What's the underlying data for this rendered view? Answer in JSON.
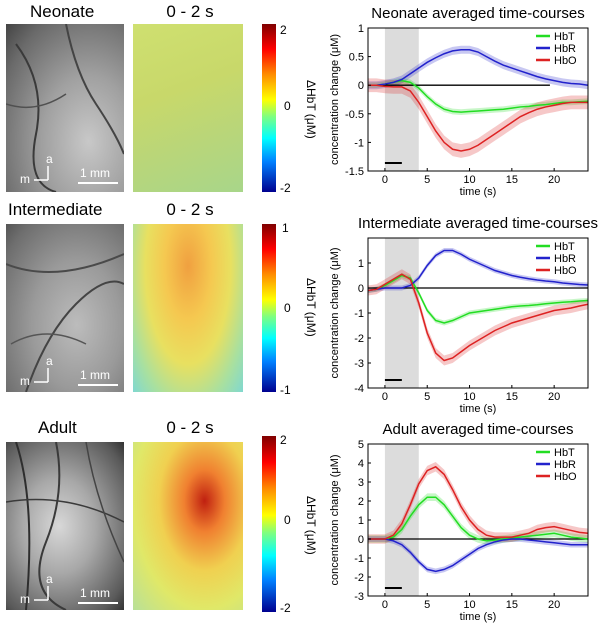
{
  "rows": [
    {
      "name": "neonate",
      "label": "Neonate",
      "map_title": "0 - 2 s",
      "scale_bar": "1 mm",
      "axis_a": "a",
      "axis_m": "m",
      "colorbar": {
        "max": "2",
        "mid": "0",
        "min": "-2",
        "unit": "ΔHbT (μM)"
      }
    },
    {
      "name": "intermediate",
      "label": "Intermediate",
      "map_title": "0 - 2 s",
      "scale_bar": "1 mm",
      "axis_a": "a",
      "axis_m": "m",
      "colorbar": {
        "max": "1",
        "mid": "0",
        "min": "-1",
        "unit": "ΔHbT (μM)"
      }
    },
    {
      "name": "adult",
      "label": "Adult",
      "map_title": "0 - 2 s",
      "scale_bar": "1 mm",
      "axis_a": "a",
      "axis_m": "m",
      "colorbar": {
        "max": "2",
        "mid": "0",
        "min": "-2",
        "unit": "ΔHbT (μM)"
      }
    }
  ],
  "colors": {
    "HbT": "#22dd22",
    "HbR": "#2222cc",
    "HbO": "#dd2222",
    "stim": "#dcdcdc"
  },
  "chart_data": [
    {
      "type": "line",
      "title": "Neonate averaged time-courses",
      "xlabel": "time (s)",
      "ylabel": "concentration change (μM)",
      "xlim": [
        -2,
        24
      ],
      "ylim": [
        -1.5,
        1
      ],
      "xticks": [
        "0",
        "5",
        "10",
        "15",
        "20"
      ],
      "xtick_values": [
        0,
        5,
        10,
        15,
        20
      ],
      "yticks": [
        "-1.5",
        "-1",
        "-0.5",
        "0",
        "0.5",
        "1"
      ],
      "ytick_values": [
        -1.5,
        -1,
        -0.5,
        0,
        0.5,
        1
      ],
      "stim_window": [
        0,
        4
      ],
      "stim_bar": [
        0,
        2
      ],
      "baseline_end": 19.5,
      "legend": [
        "HbT",
        "HbR",
        "HbO"
      ],
      "x": [
        -2,
        -1,
        0,
        1,
        2,
        3,
        4,
        5,
        6,
        7,
        8,
        9,
        10,
        11,
        12,
        13,
        14,
        15,
        16,
        17,
        18,
        19,
        20,
        21,
        22,
        23,
        24
      ],
      "series": [
        {
          "name": "HbT",
          "values": [
            0,
            0,
            0.02,
            0.05,
            0.08,
            0.05,
            -0.05,
            -0.2,
            -0.33,
            -0.42,
            -0.46,
            -0.47,
            -0.46,
            -0.45,
            -0.44,
            -0.43,
            -0.42,
            -0.4,
            -0.38,
            -0.37,
            -0.35,
            -0.34,
            -0.32,
            -0.3,
            -0.3,
            -0.29,
            -0.28
          ],
          "band": 0.05
        },
        {
          "name": "HbR",
          "values": [
            0,
            0,
            0.02,
            0.05,
            0.1,
            0.2,
            0.3,
            0.4,
            0.48,
            0.55,
            0.6,
            0.62,
            0.62,
            0.58,
            0.5,
            0.42,
            0.35,
            0.3,
            0.25,
            0.2,
            0.15,
            0.11,
            0.08,
            0.05,
            0.03,
            0.02,
            0
          ],
          "band": 0.07
        },
        {
          "name": "HbO",
          "values": [
            0,
            0,
            -0.02,
            -0.03,
            -0.03,
            -0.1,
            -0.3,
            -0.55,
            -0.8,
            -1.0,
            -1.12,
            -1.15,
            -1.12,
            -1.05,
            -0.95,
            -0.85,
            -0.75,
            -0.65,
            -0.55,
            -0.48,
            -0.42,
            -0.38,
            -0.35,
            -0.32,
            -0.3,
            -0.3,
            -0.3
          ],
          "band": 0.12
        }
      ]
    },
    {
      "type": "line",
      "title": "Intermediate averaged time-courses",
      "xlabel": "time (s)",
      "ylabel": "concentration change (μM)",
      "xlim": [
        -2,
        24
      ],
      "ylim": [
        -4,
        2
      ],
      "xticks": [
        "0",
        "5",
        "10",
        "15",
        "20"
      ],
      "xtick_values": [
        0,
        5,
        10,
        15,
        20
      ],
      "yticks": [
        "-4",
        "-3",
        "-2",
        "-1",
        "0",
        "1"
      ],
      "ytick_values": [
        -4,
        -3,
        -2,
        -1,
        0,
        1
      ],
      "stim_window": [
        0,
        4
      ],
      "stim_bar": [
        0,
        2
      ],
      "baseline_end": 24,
      "legend": [
        "HbT",
        "HbR",
        "HbO"
      ],
      "x": [
        -2,
        -1,
        0,
        1,
        2,
        3,
        4,
        5,
        6,
        7,
        8,
        9,
        10,
        11,
        12,
        13,
        14,
        15,
        16,
        17,
        18,
        19,
        20,
        21,
        22,
        23,
        24
      ],
      "series": [
        {
          "name": "HbT",
          "values": [
            -0.1,
            -0.05,
            0.1,
            0.3,
            0.5,
            0.4,
            -0.2,
            -0.9,
            -1.3,
            -1.4,
            -1.3,
            -1.15,
            -1.0,
            -0.95,
            -0.9,
            -0.85,
            -0.8,
            -0.75,
            -0.72,
            -0.7,
            -0.67,
            -0.63,
            -0.6,
            -0.57,
            -0.55,
            -0.52,
            -0.5
          ],
          "band": 0.1
        },
        {
          "name": "HbR",
          "values": [
            -0.1,
            -0.05,
            0,
            0,
            0,
            0.1,
            0.4,
            0.9,
            1.3,
            1.5,
            1.5,
            1.35,
            1.15,
            1.0,
            0.85,
            0.7,
            0.6,
            0.5,
            0.43,
            0.37,
            0.32,
            0.28,
            0.25,
            0.2,
            0.17,
            0.14,
            0.12
          ],
          "band": 0.1
        },
        {
          "name": "HbO",
          "values": [
            -0.1,
            -0.05,
            0.15,
            0.35,
            0.55,
            0.35,
            -0.6,
            -1.8,
            -2.6,
            -2.9,
            -2.8,
            -2.55,
            -2.3,
            -2.1,
            -1.9,
            -1.7,
            -1.55,
            -1.4,
            -1.3,
            -1.2,
            -1.1,
            -1.0,
            -0.9,
            -0.85,
            -0.8,
            -0.72,
            -0.65
          ],
          "band": 0.2
        }
      ]
    },
    {
      "type": "line",
      "title": "Adult averaged time-courses",
      "xlabel": "time (s)",
      "ylabel": "concentration change (μM)",
      "xlim": [
        -2,
        24
      ],
      "ylim": [
        -3,
        5
      ],
      "xticks": [
        "0",
        "5",
        "10",
        "15",
        "20"
      ],
      "xtick_values": [
        0,
        5,
        10,
        15,
        20
      ],
      "yticks": [
        "-3",
        "-2",
        "-1",
        "0",
        "1",
        "2",
        "3",
        "4",
        "5"
      ],
      "ytick_values": [
        -3,
        -2,
        -1,
        0,
        1,
        2,
        3,
        4,
        5
      ],
      "stim_window": [
        0,
        4
      ],
      "stim_bar": [
        0,
        2
      ],
      "baseline_end": 24,
      "legend": [
        "HbT",
        "HbR",
        "HbO"
      ],
      "x": [
        -2,
        -1,
        0,
        1,
        2,
        3,
        4,
        5,
        6,
        7,
        8,
        9,
        10,
        11,
        12,
        13,
        14,
        15,
        16,
        17,
        18,
        19,
        20,
        21,
        22,
        23,
        24
      ],
      "series": [
        {
          "name": "HbT",
          "values": [
            0,
            0,
            0,
            0.1,
            0.5,
            1.2,
            1.8,
            2.2,
            2.2,
            1.8,
            1.2,
            0.6,
            0.2,
            0,
            -0.1,
            -0.05,
            0,
            0.05,
            0.1,
            0.15,
            0.2,
            0.25,
            0.3,
            0.2,
            0.1,
            0.05,
            0
          ],
          "band": 0.2
        },
        {
          "name": "HbR",
          "values": [
            0,
            0,
            0,
            -0.1,
            -0.3,
            -0.7,
            -1.2,
            -1.6,
            -1.7,
            -1.6,
            -1.4,
            -1.1,
            -0.8,
            -0.5,
            -0.3,
            -0.15,
            -0.05,
            0,
            0,
            -0.05,
            -0.1,
            -0.15,
            -0.2,
            -0.25,
            -0.3,
            -0.3,
            -0.3
          ],
          "band": 0.15
        },
        {
          "name": "HbO",
          "values": [
            0,
            0,
            0,
            0.2,
            0.8,
            1.8,
            2.9,
            3.6,
            3.8,
            3.4,
            2.6,
            1.7,
            1.0,
            0.5,
            0.2,
            0.1,
            0.1,
            0.1,
            0.2,
            0.3,
            0.5,
            0.6,
            0.65,
            0.55,
            0.45,
            0.35,
            0.3
          ],
          "band": 0.25
        }
      ]
    }
  ]
}
